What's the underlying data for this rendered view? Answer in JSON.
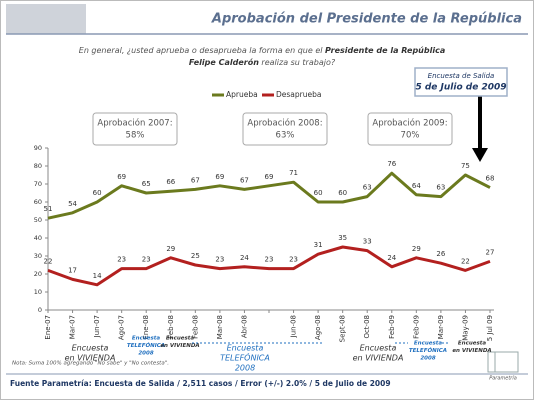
{
  "chart_data": {
    "type": "line",
    "title": "Aprobación del Presidente de la República",
    "question": [
      [
        "En general, ¿usted aprueba o desaprueba la forma en que el ",
        "Presidente de la República"
      ],
      [
        "Felipe Calderón",
        " realiza su trabajo?"
      ]
    ],
    "categories": [
      "Ene-07",
      "Mar-07",
      "Jun-07",
      "Ago-07",
      "Ene-08",
      "Feb-08",
      "Feb-08",
      "Mar-08",
      "Abr-08",
      null,
      "Jun-08",
      "Ago-08",
      "Sept-08",
      "Oct-08",
      "Feb-09",
      "Feb-09",
      "Mar-09",
      "May-09",
      "5 Jul 09"
    ],
    "series": [
      {
        "name": "Aprueba",
        "color": "#6b7a1e",
        "values": [
          51,
          54,
          60,
          69,
          65,
          66,
          67,
          69,
          67,
          69,
          71,
          60,
          60,
          63,
          76,
          64,
          63,
          75,
          68
        ]
      },
      {
        "name": "Desaprueba",
        "color": "#b3201f",
        "values": [
          22,
          17,
          14,
          23,
          23,
          29,
          25,
          23,
          24,
          23,
          23,
          31,
          35,
          33,
          24,
          29,
          26,
          22,
          27
        ]
      }
    ],
    "ylim": [
      0,
      90
    ],
    "yticks": [
      0,
      10,
      20,
      30,
      40,
      50,
      60,
      70,
      80,
      90
    ],
    "grid": false,
    "callout": [
      "Encuesta de Salida",
      "5 de Julio de 2009"
    ],
    "boxes": [
      [
        "Aprobación 2007:",
        "58%"
      ],
      [
        "Aprobación 2008:",
        "63%"
      ],
      [
        "Aprobación 2009:",
        "70%"
      ]
    ],
    "periods": [
      [
        "Encuesta",
        "en VIVIENDA"
      ],
      [
        "Encuesta",
        "TELEFÓNICA",
        "2008"
      ],
      [
        "Encuesta",
        "en VIVIENDA"
      ],
      [
        "Encuesta",
        "TELEFÓNICA",
        "2008"
      ],
      [
        "Encuesta",
        "en VIVIENDA"
      ],
      [
        "Encuesta",
        "TELEFÓNICA",
        "2008"
      ],
      [
        "Encuesta",
        "en VIVIENDA"
      ]
    ],
    "note": "Nota: Suma 100% agregando \"No sabe\" y \"No contesta\".",
    "source": "Fuente Parametría: Encuesta de Salida / 2,511 casos / Error (+/-) 2.0% / 5 de Julio de 2009",
    "logo": "Parametría"
  }
}
